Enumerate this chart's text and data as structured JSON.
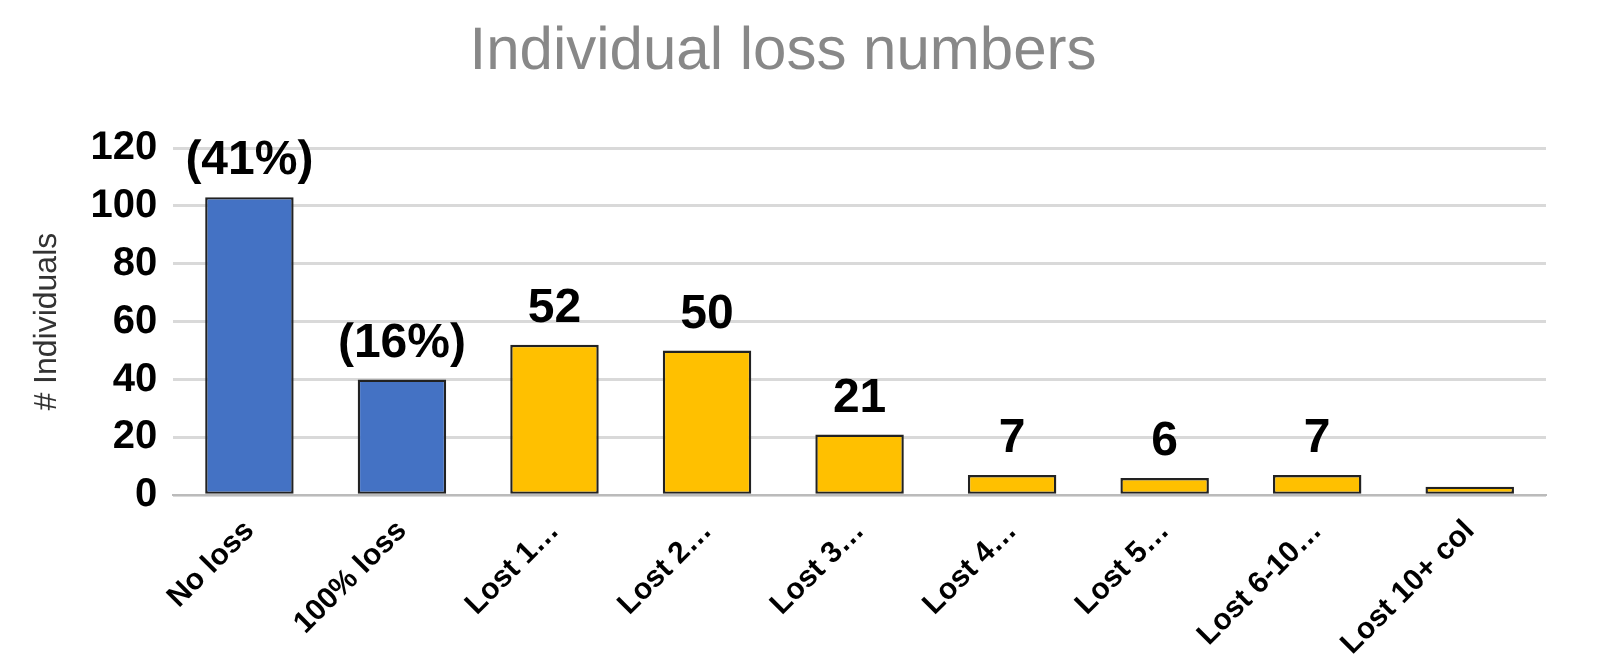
{
  "chart_data": {
    "type": "bar",
    "title": "Individual loss numbers",
    "ylabel": "# Individuals",
    "categories": [
      "No loss",
      "100% loss",
      "Lost 1…",
      "Lost 2…",
      "Lost 3…",
      "Lost 4…",
      "Lost 5…",
      "Lost 6-10…",
      "Lost 10+ col"
    ],
    "values": [
      103,
      40,
      52,
      50,
      21,
      7,
      6,
      7,
      3
    ],
    "colors": [
      "#4472c4",
      "#4472c4",
      "#ffc000",
      "#ffc000",
      "#ffc000",
      "#ffc000",
      "#ffc000",
      "#ffc000",
      "#ffc000"
    ],
    "value_labels": [
      null,
      null,
      "52",
      "50",
      "21",
      "7",
      "6",
      "7",
      null
    ],
    "annotations": [
      {
        "text": "(41%)",
        "x": "No loss",
        "y": 103
      },
      {
        "text": "(16%)",
        "x": "100% loss",
        "y": 40
      }
    ],
    "ylim": [
      0,
      120
    ],
    "yticks": [
      0,
      20,
      40,
      60,
      80,
      100,
      120
    ],
    "grid": "y",
    "legend": false
  }
}
